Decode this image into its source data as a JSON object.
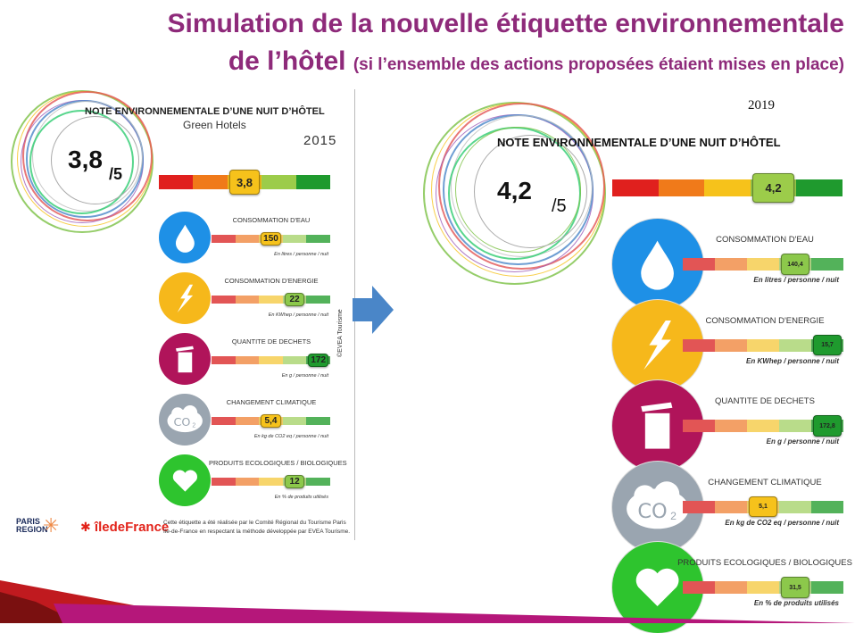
{
  "title": {
    "line1": "Simulation de la nouvelle étiquette environnementale",
    "line2_main": "de l’hôtel",
    "line2_sub": "(si l’ensemble des actions proposées étaient mises en place)"
  },
  "colors": {
    "title": "#8e2a7a",
    "segments": [
      "#e0201e",
      "#f07a1a",
      "#f6c21b",
      "#9ccc4a",
      "#1f9a2e"
    ],
    "arrow": "#4a86c8"
  },
  "left": {
    "heading": "NOTE ENVIRONNEMENTALE D’UNE NUIT D’HÔTEL",
    "subheading": "Green Hotels",
    "year": "2015",
    "score": "3,8",
    "score_max": "/5",
    "main_value": "3,8",
    "main_index": 2,
    "indicators": [
      {
        "icon": "water-drop-icon",
        "label": "CONSOMMATION D'EAU",
        "value": "150",
        "index": 2,
        "unit": "En litres / personne / nuit"
      },
      {
        "icon": "lightning-icon",
        "label": "CONSOMMATION D'ENERGIE",
        "value": "22",
        "index": 3,
        "unit": "En KWhep / personne / nuit"
      },
      {
        "icon": "trash-bin-icon",
        "label": "QUANTITE DE DECHETS",
        "value": "172",
        "index": 4,
        "unit": "En g / personne / nuit"
      },
      {
        "icon": "co2-cloud-icon",
        "label": "CHANGEMENT CLIMATIQUE",
        "value": "5,4",
        "index": 2,
        "unit": "En kg de CO2 eq / personne / nuit"
      },
      {
        "icon": "heart-icon",
        "label": "PRODUITS ECOLOGIQUES / BIOLOGIQUES",
        "value": "12",
        "index": 3,
        "unit": "En % de produits utilisés"
      }
    ],
    "credit": "©EVEA Tourisme",
    "logos": {
      "paris_region": "PARIS REGION",
      "idf": "îledeFrance"
    },
    "footnote": "Cette étiquette a été réalisée par le Comité Régional du Tourisme Paris Ile-de-France en respectant la méthode développée par EVEA Tourisme."
  },
  "right": {
    "heading": "NOTE ENVIRONNEMENTALE D’UNE NUIT D’HÔTEL",
    "year": "2019",
    "score": "4,2",
    "score_max": "/5",
    "main_value": "4,2",
    "main_index": 3,
    "indicators": [
      {
        "icon": "water-drop-icon",
        "label": "CONSOMMATION D'EAU",
        "value": "140,4",
        "index": 3,
        "unit": "En litres / personne / nuit"
      },
      {
        "icon": "lightning-icon",
        "label": "CONSOMMATION D'ENERGIE",
        "value": "15,7",
        "index": 4,
        "unit": "En KWhep / personne / nuit"
      },
      {
        "icon": "trash-bin-icon",
        "label": "QUANTITE DE DECHETS",
        "value": "172,8",
        "index": 4,
        "unit": "En g / personne / nuit"
      },
      {
        "icon": "co2-cloud-icon",
        "label": "CHANGEMENT CLIMATIQUE",
        "value": "5,1",
        "index": 2,
        "unit": "En kg de CO2 eq / personne / nuit"
      },
      {
        "icon": "heart-icon",
        "label": "PRODUITS ECOLOGIQUES / BIOLOGIQUES",
        "value": "31,5",
        "index": 3,
        "unit": "En % de produits utilisés"
      }
    ]
  }
}
